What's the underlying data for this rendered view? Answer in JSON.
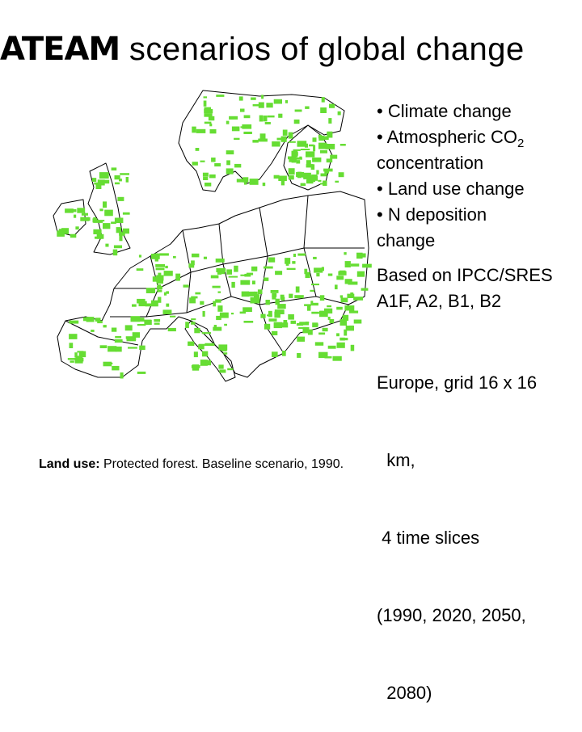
{
  "title": {
    "brand": "ATEAM",
    "rest": " scenarios of global change"
  },
  "map": {
    "caption_label": "Land use:",
    "caption_text": " Protected forest. Baseline scenario, 1990.",
    "colors": {
      "land": "#ffffff",
      "border": "#000000",
      "forest": "#66dd33"
    }
  },
  "bullets": {
    "items": [
      {
        "bullet": "•",
        "line1": "Climate change"
      },
      {
        "bullet": "•",
        "line1": "Atmospheric CO",
        "sub": "2",
        "line2": "concentration"
      },
      {
        "bullet": "•",
        "line1": "Land use change"
      },
      {
        "bullet": "•",
        "line1": "N deposition",
        "line2": "change"
      }
    ]
  },
  "scenarios": {
    "line1": "Based on IPCC/SRES",
    "line2": "A1F, A2, B1, B2"
  },
  "grid": {
    "line1": "Europe, grid 16 x 16",
    "line2": "  km,",
    "line3": " 4 time slices",
    "line4": "(1990, 2020, 2050,",
    "line5": "  2080)"
  }
}
